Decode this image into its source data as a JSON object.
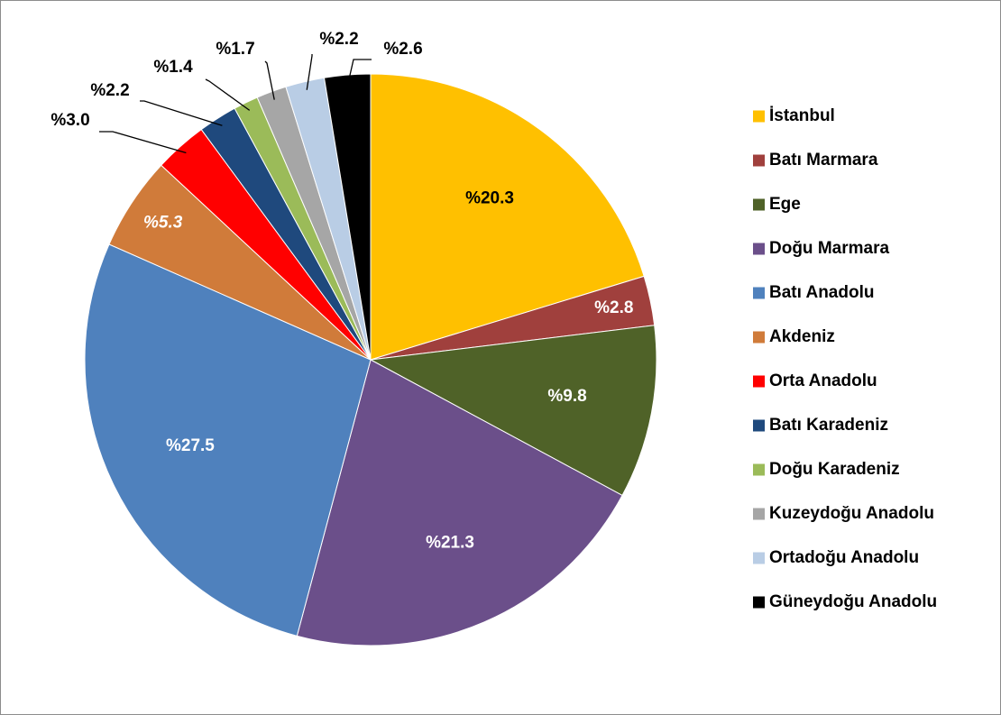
{
  "chart_data": {
    "type": "pie",
    "categories": [
      "İstanbul",
      "Batı Marmara",
      "Ege",
      "Doğu Marmara",
      "Batı Anadolu",
      "Akdeniz",
      "Orta Anadolu",
      "Batı Karadeniz",
      "Doğu Karadeniz",
      "Kuzeydoğu Anadolu",
      "Ortadoğu Anadolu",
      "Güneydoğu Anadolu"
    ],
    "values": [
      20.3,
      2.8,
      9.8,
      21.3,
      27.5,
      5.3,
      3.0,
      2.2,
      1.4,
      1.7,
      2.2,
      2.6
    ],
    "value_labels": [
      "%20.3",
      "%2.8",
      "%9.8",
      "%21.3",
      "%27.5",
      "%5.3",
      "%3.0",
      "%2.2",
      "%1.4",
      "%1.7",
      "%2.2",
      "%2.6"
    ],
    "colors": [
      "#FFC000",
      "#A0403D",
      "#4F6228",
      "#6B4F8A",
      "#4F81BD",
      "#D07B3A",
      "#FF0000",
      "#1F497D",
      "#9BBB59",
      "#A6A6A6",
      "#B9CDE5",
      "#000000"
    ],
    "legend": "right"
  }
}
